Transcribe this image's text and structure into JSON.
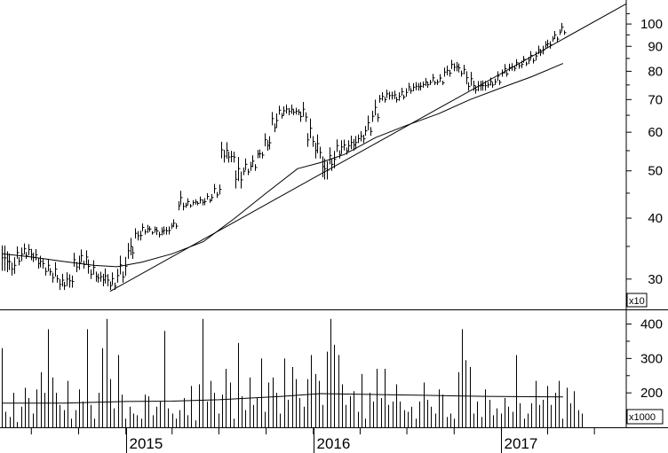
{
  "chart_data": [
    {
      "type": "ohlc",
      "panel": "price",
      "yscale": "log",
      "ylim": [
        26,
        112
      ],
      "xlim": [
        "2014-05",
        "2017-09"
      ],
      "multiplier_label": "x10",
      "y_ticks": [
        30,
        40,
        50,
        60,
        70,
        80,
        90,
        100
      ],
      "x_ticks": [
        "2015",
        "2016",
        "2017"
      ],
      "grid": false,
      "series": [
        {
          "kind": "weekly-price-bars",
          "points": [
            {
              "x": "2014-05-05",
              "low": 31.0,
              "high": 36.5
            },
            {
              "x": "2014-05-19",
              "low": 30.5,
              "high": 34.0
            },
            {
              "x": "2014-06-02",
              "low": 32.0,
              "high": 35.0
            },
            {
              "x": "2014-06-16",
              "low": 33.0,
              "high": 35.5
            },
            {
              "x": "2014-06-30",
              "low": 32.5,
              "high": 35.0
            },
            {
              "x": "2014-07-14",
              "low": 31.5,
              "high": 34.0
            },
            {
              "x": "2014-07-28",
              "low": 30.5,
              "high": 33.0
            },
            {
              "x": "2014-08-11",
              "low": 29.5,
              "high": 32.5
            },
            {
              "x": "2014-08-25",
              "low": 28.5,
              "high": 31.0
            },
            {
              "x": "2014-09-08",
              "low": 28.8,
              "high": 31.5
            },
            {
              "x": "2014-09-22",
              "low": 31.0,
              "high": 34.0
            },
            {
              "x": "2014-10-06",
              "low": 31.5,
              "high": 34.5
            },
            {
              "x": "2014-10-20",
              "low": 30.0,
              "high": 33.0
            },
            {
              "x": "2014-11-03",
              "low": 29.5,
              "high": 31.5
            },
            {
              "x": "2014-11-17",
              "low": 29.0,
              "high": 32.0
            },
            {
              "x": "2014-12-01",
              "low": 28.5,
              "high": 31.0
            },
            {
              "x": "2014-12-15",
              "low": 29.5,
              "high": 33.5
            },
            {
              "x": "2015-01-05",
              "low": 33.0,
              "high": 37.0
            },
            {
              "x": "2015-01-19",
              "low": 36.0,
              "high": 38.5
            },
            {
              "x": "2015-02-02",
              "low": 37.0,
              "high": 39.0
            },
            {
              "x": "2015-02-16",
              "low": 37.0,
              "high": 38.5
            },
            {
              "x": "2015-03-02",
              "low": 36.5,
              "high": 38.5
            },
            {
              "x": "2015-03-16",
              "low": 37.0,
              "high": 39.0
            },
            {
              "x": "2015-03-30",
              "low": 38.0,
              "high": 40.0
            },
            {
              "x": "2015-04-13",
              "low": 41.5,
              "high": 45.5
            },
            {
              "x": "2015-04-27",
              "low": 42.0,
              "high": 44.0
            },
            {
              "x": "2015-05-11",
              "low": 42.5,
              "high": 44.0
            },
            {
              "x": "2015-05-25",
              "low": 42.5,
              "high": 44.5
            },
            {
              "x": "2015-06-08",
              "low": 43.0,
              "high": 45.0
            },
            {
              "x": "2015-06-22",
              "low": 44.0,
              "high": 47.0
            },
            {
              "x": "2015-07-06",
              "low": 52.0,
              "high": 58.0
            },
            {
              "x": "2015-07-20",
              "low": 52.0,
              "high": 56.0
            },
            {
              "x": "2015-08-03",
              "low": 46.0,
              "high": 54.0
            },
            {
              "x": "2015-08-17",
              "low": 49.0,
              "high": 53.0
            },
            {
              "x": "2015-08-31",
              "low": 50.0,
              "high": 54.0
            },
            {
              "x": "2015-09-14",
              "low": 53.0,
              "high": 56.0
            },
            {
              "x": "2015-09-28",
              "low": 55.0,
              "high": 60.0
            },
            {
              "x": "2015-10-12",
              "low": 60.0,
              "high": 66.0
            },
            {
              "x": "2015-10-26",
              "low": 64.0,
              "high": 68.0
            },
            {
              "x": "2015-11-09",
              "low": 65.0,
              "high": 69.0
            },
            {
              "x": "2015-11-23",
              "low": 65.0,
              "high": 68.0
            },
            {
              "x": "2015-12-07",
              "low": 63.0,
              "high": 69.5
            },
            {
              "x": "2015-12-21",
              "low": 56.0,
              "high": 64.0
            },
            {
              "x": "2016-01-04",
              "low": 53.0,
              "high": 60.0
            },
            {
              "x": "2016-01-18",
              "low": 48.0,
              "high": 55.0
            },
            {
              "x": "2016-02-01",
              "low": 50.0,
              "high": 56.0
            },
            {
              "x": "2016-02-15",
              "low": 53.0,
              "high": 58.0
            },
            {
              "x": "2016-02-29",
              "low": 54.0,
              "high": 58.0
            },
            {
              "x": "2016-03-14",
              "low": 55.0,
              "high": 60.0
            },
            {
              "x": "2016-03-28",
              "low": 57.0,
              "high": 61.0
            },
            {
              "x": "2016-04-11",
              "low": 59.0,
              "high": 65.0
            },
            {
              "x": "2016-04-25",
              "low": 63.0,
              "high": 70.0
            },
            {
              "x": "2016-05-09",
              "low": 69.0,
              "high": 73.0
            },
            {
              "x": "2016-05-23",
              "low": 70.0,
              "high": 74.0
            },
            {
              "x": "2016-06-06",
              "low": 69.0,
              "high": 73.0
            },
            {
              "x": "2016-06-20",
              "low": 70.0,
              "high": 74.0
            },
            {
              "x": "2016-07-04",
              "low": 72.0,
              "high": 76.0
            },
            {
              "x": "2016-07-18",
              "low": 73.0,
              "high": 77.0
            },
            {
              "x": "2016-08-01",
              "low": 74.0,
              "high": 78.0
            },
            {
              "x": "2016-08-15",
              "low": 75.0,
              "high": 79.0
            },
            {
              "x": "2016-08-29",
              "low": 75.0,
              "high": 79.0
            },
            {
              "x": "2016-09-12",
              "low": 78.0,
              "high": 83.0
            },
            {
              "x": "2016-09-26",
              "low": 80.0,
              "high": 85.0
            },
            {
              "x": "2016-10-10",
              "low": 78.0,
              "high": 83.0
            },
            {
              "x": "2016-10-24",
              "low": 73.0,
              "high": 80.0
            },
            {
              "x": "2016-11-07",
              "low": 72.0,
              "high": 77.0
            },
            {
              "x": "2016-11-21",
              "low": 73.0,
              "high": 78.0
            },
            {
              "x": "2016-12-05",
              "low": 74.0,
              "high": 78.0
            },
            {
              "x": "2016-12-19",
              "low": 75.0,
              "high": 80.0
            },
            {
              "x": "2017-01-02",
              "low": 78.0,
              "high": 83.0
            },
            {
              "x": "2017-01-16",
              "low": 80.0,
              "high": 84.0
            },
            {
              "x": "2017-01-30",
              "low": 81.0,
              "high": 85.0
            },
            {
              "x": "2017-02-13",
              "low": 82.0,
              "high": 86.0
            },
            {
              "x": "2017-02-27",
              "low": 83.0,
              "high": 88.0
            },
            {
              "x": "2017-03-13",
              "low": 86.0,
              "high": 91.0
            },
            {
              "x": "2017-03-27",
              "low": 89.0,
              "high": 94.0
            },
            {
              "x": "2017-04-10",
              "low": 92.0,
              "high": 97.0
            },
            {
              "x": "2017-04-24",
              "low": 95.0,
              "high": 100.5
            }
          ]
        },
        {
          "kind": "moving-average",
          "points": [
            {
              "x": "2014-05-05",
              "y": 33.8
            },
            {
              "x": "2014-07-01",
              "y": 33.3
            },
            {
              "x": "2014-09-01",
              "y": 32.6
            },
            {
              "x": "2014-11-01",
              "y": 32.0
            },
            {
              "x": "2014-12-15",
              "y": 31.8
            },
            {
              "x": "2015-02-01",
              "y": 32.5
            },
            {
              "x": "2015-04-01",
              "y": 33.8
            },
            {
              "x": "2015-06-01",
              "y": 35.8
            },
            {
              "x": "2015-08-01",
              "y": 40.0
            },
            {
              "x": "2015-10-01",
              "y": 45.0
            },
            {
              "x": "2015-12-01",
              "y": 50.5
            },
            {
              "x": "2016-01-15",
              "y": 52.0
            },
            {
              "x": "2016-03-01",
              "y": 54.0
            },
            {
              "x": "2016-05-01",
              "y": 58.5
            },
            {
              "x": "2016-07-01",
              "y": 62.0
            },
            {
              "x": "2016-09-01",
              "y": 65.5
            },
            {
              "x": "2016-11-01",
              "y": 70.0
            },
            {
              "x": "2017-01-01",
              "y": 74.0
            },
            {
              "x": "2017-03-01",
              "y": 78.0
            },
            {
              "x": "2017-05-01",
              "y": 83.0
            }
          ]
        },
        {
          "kind": "trendline",
          "points": [
            {
              "x": "2014-12-01",
              "y": 28.3
            },
            {
              "x": "2017-09-01",
              "y": 110.0
            }
          ]
        }
      ]
    },
    {
      "type": "bar",
      "panel": "volume",
      "ylim": [
        100,
        440
      ],
      "multiplier_label": "x1000",
      "y_ticks": [
        200,
        300,
        400
      ],
      "series": [
        {
          "kind": "volume-bars",
          "values": [
            330,
            145,
            130,
            200,
            115,
            160,
            215,
            185,
            140,
            210,
            260,
            200,
            385,
            245,
            200,
            165,
            150,
            235,
            125,
            150,
            210,
            175,
            385,
            165,
            125,
            200,
            330,
            415,
            240,
            155,
            310,
            195,
            125,
            160,
            140,
            135,
            125,
            195,
            190,
            135,
            160,
            175,
            380,
            155,
            140,
            125,
            150,
            185,
            135,
            220,
            120,
            225,
            415,
            175,
            235,
            200,
            140,
            195,
            270,
            230,
            125,
            345,
            190,
            150,
            245,
            165,
            185,
            300,
            145,
            230,
            245,
            200,
            140,
            300,
            180,
            275,
            240,
            185,
            160,
            240,
            310,
            255,
            235,
            165,
            320,
            415,
            340,
            310,
            225,
            165,
            190,
            205,
            145,
            255,
            125,
            200,
            175,
            270,
            185,
            270,
            165,
            175,
            225,
            175,
            150,
            145,
            160,
            125,
            175,
            230,
            180,
            160,
            140,
            210,
            195,
            130,
            140,
            125,
            260,
            385,
            295,
            275,
            140,
            175,
            130,
            210,
            180,
            135,
            155,
            140,
            185,
            160,
            145,
            310,
            170,
            125,
            140,
            170,
            235,
            165,
            180,
            220,
            165,
            200,
            235,
            125,
            215,
            170,
            205,
            150,
            140
          ]
        },
        {
          "kind": "volume-average",
          "points": [
            {
              "x": "2014-05-05",
              "y": 170
            },
            {
              "x": "2014-09-01",
              "y": 170
            },
            {
              "x": "2015-01-01",
              "y": 175
            },
            {
              "x": "2015-04-01",
              "y": 176
            },
            {
              "x": "2015-07-01",
              "y": 180
            },
            {
              "x": "2015-11-01",
              "y": 190
            },
            {
              "x": "2016-01-15",
              "y": 198
            },
            {
              "x": "2016-04-01",
              "y": 196
            },
            {
              "x": "2016-08-01",
              "y": 193
            },
            {
              "x": "2016-12-01",
              "y": 190
            },
            {
              "x": "2017-05-01",
              "y": 188
            }
          ]
        }
      ]
    }
  ]
}
